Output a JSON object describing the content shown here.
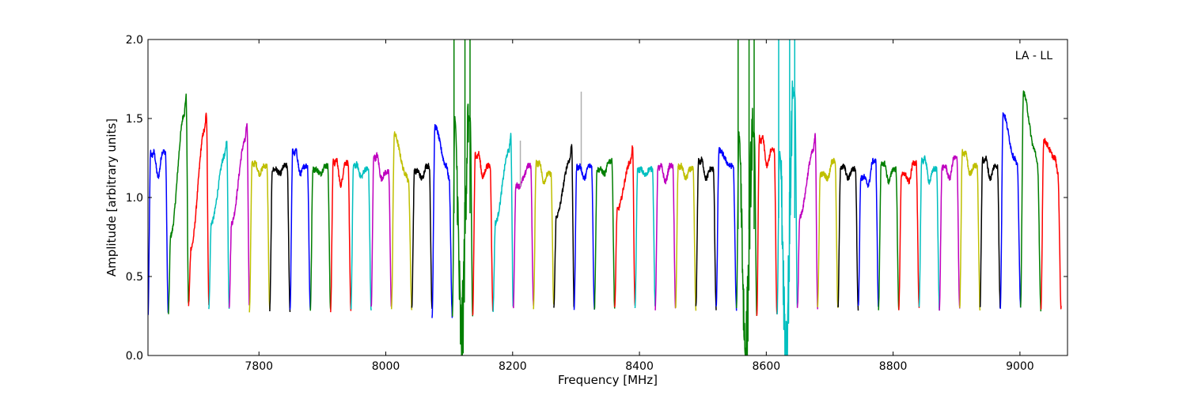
{
  "chart_data": {
    "type": "line",
    "title": "",
    "annotation": "LA - LL",
    "xlabel": "Frequency [MHz]",
    "ylabel": "Amplitude [arbitrary units]",
    "xlim": [
      7625,
      9075
    ],
    "ylim": [
      0.0,
      2.0
    ],
    "xticks": [
      7800,
      8000,
      8200,
      8400,
      8600,
      8800,
      9000
    ],
    "xtick_labels": [
      "7800",
      "8000",
      "8200",
      "8400",
      "8600",
      "8800",
      "9000"
    ],
    "yticks": [
      0.0,
      0.5,
      1.0,
      1.5,
      2.0
    ],
    "ytick_labels": [
      "0.0",
      "0.5",
      "1.0",
      "1.5",
      "2.0"
    ],
    "grid": false,
    "line_width": 1.5,
    "colors": [
      "#0000ff",
      "#007f00",
      "#ff0000",
      "#00bfbf",
      "#bf00bf",
      "#bfbf00",
      "#000000"
    ],
    "flag_color": "#b0b0b0",
    "band_width_mhz": 32,
    "series": [
      {
        "start": 7625,
        "low_start": 0.25,
        "low_end": 0.26,
        "shape": "M",
        "peak1": 1.29,
        "peak2": 1.29,
        "mid": 1.13
      },
      {
        "start": 7657,
        "low_start": 0.26,
        "low_end": 0.32,
        "shape": "rise",
        "peak1": 0.95,
        "peak2": 1.64,
        "mid": 1.2
      },
      {
        "start": 7689,
        "low_start": 0.32,
        "low_end": 0.33,
        "shape": "rise",
        "peak1": 0.85,
        "peak2": 1.53,
        "mid": 1.2
      },
      {
        "start": 7721,
        "low_start": 0.31,
        "low_end": 0.31,
        "shape": "rise",
        "peak1": 1.05,
        "peak2": 1.36,
        "mid": 1.2
      },
      {
        "start": 7753,
        "low_start": 0.31,
        "low_end": 0.31,
        "shape": "rise",
        "peak1": 1.05,
        "peak2": 1.46,
        "mid": 1.2
      },
      {
        "start": 7785,
        "low_start": 0.28,
        "low_end": 0.29,
        "shape": "M",
        "peak1": 1.22,
        "peak2": 1.2,
        "mid": 1.15
      },
      {
        "start": 7817,
        "low_start": 0.29,
        "low_end": 0.29,
        "shape": "M",
        "peak1": 1.18,
        "peak2": 1.2,
        "mid": 1.15
      },
      {
        "start": 7849,
        "low_start": 0.29,
        "low_end": 0.29,
        "shape": "M",
        "peak1": 1.3,
        "peak2": 1.2,
        "mid": 1.15
      },
      {
        "start": 7881,
        "low_start": 0.29,
        "low_end": 0.29,
        "shape": "M",
        "peak1": 1.18,
        "peak2": 1.2,
        "mid": 1.15
      },
      {
        "start": 7913,
        "low_start": 0.29,
        "low_end": 0.29,
        "shape": "M",
        "peak1": 1.24,
        "peak2": 1.22,
        "mid": 1.08
      },
      {
        "start": 7945,
        "low_start": 0.29,
        "low_end": 0.29,
        "shape": "M",
        "peak1": 1.21,
        "peak2": 1.18,
        "mid": 1.13
      },
      {
        "start": 7977,
        "low_start": 0.3,
        "low_end": 0.3,
        "shape": "M",
        "peak1": 1.27,
        "peak2": 1.16,
        "mid": 1.12
      },
      {
        "start": 8009,
        "low_start": 0.3,
        "low_end": 0.3,
        "shape": "fall",
        "peak1": 1.4,
        "peak2": 1.1,
        "mid": 1.15
      },
      {
        "start": 8041,
        "low_start": 0.3,
        "low_end": 0.3,
        "shape": "M",
        "peak1": 1.17,
        "peak2": 1.2,
        "mid": 1.12
      },
      {
        "start": 8073,
        "low_start": 0.25,
        "low_end": 0.24,
        "shape": "fall",
        "peak1": 1.45,
        "peak2": 1.12,
        "mid": 1.2
      },
      {
        "start": 8105,
        "low_start": 0.24,
        "low_end": 0.25,
        "shape": "noisy",
        "peak1": 1.5,
        "peak2": 1.5,
        "mid": 0.1,
        "spike_max": 2.0
      },
      {
        "start": 8137,
        "low_start": 0.25,
        "low_end": 0.28,
        "shape": "M",
        "peak1": 1.28,
        "peak2": 1.2,
        "mid": 1.13
      },
      {
        "start": 8169,
        "low_start": 0.28,
        "low_end": 0.3,
        "shape": "rise",
        "peak1": 1.05,
        "peak2": 1.39,
        "mid": 1.2
      },
      {
        "start": 8201,
        "low_start": 0.3,
        "low_end": 0.31,
        "shape": "M",
        "peak1": 1.07,
        "peak2": 1.2,
        "mid": 1.12,
        "flag": 1.36
      },
      {
        "start": 8233,
        "low_start": 0.31,
        "low_end": 0.31,
        "shape": "M",
        "peak1": 1.23,
        "peak2": 1.15,
        "mid": 1.1
      },
      {
        "start": 8265,
        "low_start": 0.31,
        "low_end": 0.3,
        "shape": "rise",
        "peak1": 1.1,
        "peak2": 1.33,
        "mid": 1.2
      },
      {
        "start": 8297,
        "low_start": 0.3,
        "low_end": 0.3,
        "shape": "M",
        "peak1": 1.2,
        "peak2": 1.2,
        "mid": 1.12,
        "flag": 1.67
      },
      {
        "start": 8329,
        "low_start": 0.3,
        "low_end": 0.3,
        "shape": "M",
        "peak1": 1.18,
        "peak2": 1.23,
        "mid": 1.15
      },
      {
        "start": 8361,
        "low_start": 0.3,
        "low_end": 0.3,
        "shape": "rise",
        "peak1": 1.15,
        "peak2": 1.32,
        "mid": 1.2
      },
      {
        "start": 8393,
        "low_start": 0.3,
        "low_end": 0.3,
        "shape": "M",
        "peak1": 1.18,
        "peak2": 1.18,
        "mid": 1.14
      },
      {
        "start": 8425,
        "low_start": 0.3,
        "low_end": 0.3,
        "shape": "M",
        "peak1": 1.2,
        "peak2": 1.2,
        "mid": 1.1
      },
      {
        "start": 8457,
        "low_start": 0.3,
        "low_end": 0.3,
        "shape": "M",
        "peak1": 1.2,
        "peak2": 1.18,
        "mid": 1.12
      },
      {
        "start": 8489,
        "low_start": 0.3,
        "low_end": 0.3,
        "shape": "M",
        "peak1": 1.24,
        "peak2": 1.18,
        "mid": 1.12
      },
      {
        "start": 8521,
        "low_start": 0.3,
        "low_end": 0.3,
        "shape": "fall",
        "peak1": 1.3,
        "peak2": 1.2,
        "mid": 1.2
      },
      {
        "start": 8553,
        "low_start": 0.3,
        "low_end": 0.25,
        "shape": "noisy",
        "peak1": 1.4,
        "peak2": 1.4,
        "mid": 0.0,
        "spike_max": 2.0
      },
      {
        "start": 8585,
        "low_start": 0.25,
        "low_end": 0.25,
        "shape": "M",
        "peak1": 1.38,
        "peak2": 1.3,
        "mid": 1.2
      },
      {
        "start": 8617,
        "low_start": 0.25,
        "low_end": 0.3,
        "shape": "noisy",
        "peak1": 1.3,
        "peak2": 1.65,
        "mid": 0.07,
        "spike_max": 2.0
      },
      {
        "start": 8649,
        "low_start": 0.3,
        "low_end": 0.3,
        "shape": "rise",
        "peak1": 1.1,
        "peak2": 1.39,
        "mid": 1.2
      },
      {
        "start": 8681,
        "low_start": 0.3,
        "low_end": 0.3,
        "shape": "M",
        "peak1": 1.15,
        "peak2": 1.23,
        "mid": 1.12
      },
      {
        "start": 8713,
        "low_start": 0.3,
        "low_end": 0.3,
        "shape": "M",
        "peak1": 1.2,
        "peak2": 1.18,
        "mid": 1.12
      },
      {
        "start": 8745,
        "low_start": 0.3,
        "low_end": 0.3,
        "shape": "M",
        "peak1": 1.13,
        "peak2": 1.23,
        "mid": 1.08
      },
      {
        "start": 8777,
        "low_start": 0.3,
        "low_end": 0.3,
        "shape": "M",
        "peak1": 1.22,
        "peak2": 1.18,
        "mid": 1.1
      },
      {
        "start": 8809,
        "low_start": 0.3,
        "low_end": 0.3,
        "shape": "M",
        "peak1": 1.15,
        "peak2": 1.22,
        "mid": 1.1
      },
      {
        "start": 8841,
        "low_start": 0.3,
        "low_end": 0.3,
        "shape": "M",
        "peak1": 1.25,
        "peak2": 1.18,
        "mid": 1.1
      },
      {
        "start": 8873,
        "low_start": 0.3,
        "low_end": 0.3,
        "shape": "M",
        "peak1": 1.2,
        "peak2": 1.25,
        "mid": 1.12
      },
      {
        "start": 8905,
        "low_start": 0.3,
        "low_end": 0.3,
        "shape": "M",
        "peak1": 1.29,
        "peak2": 1.2,
        "mid": 1.15
      },
      {
        "start": 8937,
        "low_start": 0.3,
        "low_end": 0.3,
        "shape": "M",
        "peak1": 1.25,
        "peak2": 1.2,
        "mid": 1.12
      },
      {
        "start": 8969,
        "low_start": 0.3,
        "low_end": 0.32,
        "shape": "fall",
        "peak1": 1.53,
        "peak2": 1.2,
        "mid": 1.25
      },
      {
        "start": 9001,
        "low_start": 0.32,
        "low_end": 0.28,
        "shape": "fall",
        "peak1": 1.66,
        "peak2": 1.2,
        "mid": 1.3
      },
      {
        "start": 9033,
        "low_start": 0.28,
        "low_end": 0.3,
        "shape": "fall",
        "peak1": 1.36,
        "peak2": 1.15,
        "mid": 1.25
      }
    ]
  }
}
